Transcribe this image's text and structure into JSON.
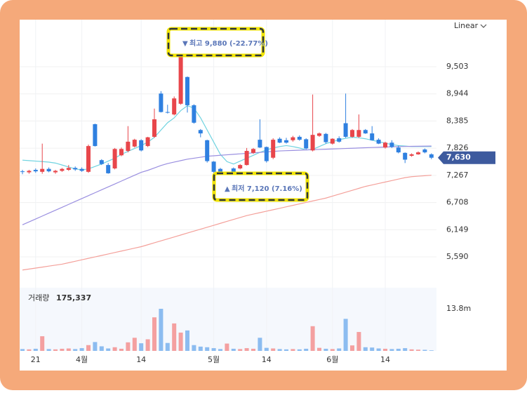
{
  "chart_data": {
    "type": "candlestick",
    "scale_label": "Linear",
    "categories": [
      null,
      null,
      "21",
      null,
      null,
      null,
      null,
      null,
      null,
      "4월",
      null,
      null,
      null,
      null,
      null,
      null,
      null,
      null,
      "14",
      null,
      null,
      null,
      null,
      null,
      null,
      null,
      null,
      null,
      null,
      "5월",
      null,
      null,
      null,
      null,
      null,
      null,
      null,
      "14",
      null,
      null,
      null,
      null,
      null,
      null,
      null,
      null,
      null,
      "6월",
      null,
      null,
      null,
      null,
      null,
      null,
      null,
      "14",
      null,
      null,
      null,
      null,
      null,
      null,
      null
    ],
    "open": [
      7350,
      7330,
      7380,
      7340,
      7400,
      7330,
      7360,
      7380,
      7420,
      7400,
      7340,
      8320,
      7580,
      7480,
      7410,
      7680,
      7770,
      7860,
      7990,
      7870,
      8060,
      8950,
      8570,
      8520,
      8740,
      9290,
      8710,
      8200,
      7990,
      7550,
      7400,
      7190,
      7410,
      7410,
      7480,
      7730,
      8000,
      7850,
      7630,
      8020,
      7990,
      7990,
      8060,
      8010,
      7780,
      8080,
      8120,
      7920,
      8030,
      8340,
      8060,
      8060,
      8200,
      8130,
      8000,
      7840,
      7940,
      7840,
      7730,
      7670,
      7700,
      7800,
      7700
    ],
    "high": [
      7380,
      7380,
      7410,
      7920,
      7430,
      7380,
      7420,
      7480,
      7450,
      7430,
      7900,
      8330,
      7600,
      7520,
      7830,
      7840,
      8280,
      8020,
      8010,
      8060,
      8640,
      9000,
      8720,
      8890,
      9880,
      9300,
      8730,
      8220,
      8000,
      7560,
      7420,
      7310,
      7430,
      7500,
      7830,
      7830,
      8420,
      7860,
      8030,
      8050,
      8040,
      8080,
      8090,
      8030,
      8930,
      8150,
      8140,
      8030,
      8070,
      8950,
      8220,
      8520,
      8220,
      8280,
      8030,
      7960,
      7990,
      7880,
      7740,
      7720,
      7760,
      7820,
      7720
    ],
    "low": [
      7290,
      7300,
      7320,
      7300,
      7330,
      7300,
      7340,
      7360,
      7360,
      7340,
      7320,
      7860,
      7480,
      7300,
      7390,
      7660,
      7740,
      7840,
      7760,
      7850,
      8040,
      8560,
      8540,
      8500,
      8720,
      8560,
      8330,
      8050,
      7530,
      7320,
      7120,
      7170,
      7330,
      7390,
      7470,
      7710,
      7830,
      7530,
      7600,
      7930,
      7920,
      7960,
      7980,
      7800,
      7760,
      8060,
      7920,
      7900,
      7940,
      8040,
      8040,
      8040,
      8120,
      7980,
      7910,
      7820,
      7830,
      7720,
      7520,
      7650,
      7690,
      7720,
      7600
    ],
    "close": [
      7340,
      7360,
      7350,
      7400,
      7350,
      7360,
      7400,
      7420,
      7390,
      7360,
      7870,
      7870,
      7500,
      7310,
      7810,
      7810,
      7960,
      8000,
      7780,
      8050,
      8420,
      8570,
      8560,
      8850,
      9860,
      8710,
      8350,
      8130,
      7560,
      7340,
      7330,
      7290,
      7340,
      7480,
      7770,
      7810,
      7840,
      7560,
      8000,
      7940,
      7940,
      8050,
      8000,
      7820,
      8100,
      8130,
      7950,
      8020,
      7960,
      8060,
      8200,
      8200,
      8130,
      7990,
      7920,
      7940,
      7850,
      7740,
      7590,
      7700,
      7740,
      7740,
      7630
    ],
    "up_color": "#e8464b",
    "down_color": "#2f80e0",
    "series": [
      {
        "color": "#6fd3e0",
        "values": [
          7580,
          7570,
          7560,
          7550,
          7540,
          7520,
          7480,
          7440,
          7400,
          7380,
          7400,
          7450,
          7500,
          7560,
          7620,
          7700,
          7760,
          7820,
          7880,
          7950,
          8050,
          8200,
          8350,
          8450,
          8600,
          8700,
          8650,
          8450,
          8200,
          7950,
          7700,
          7550,
          7500,
          7560,
          7620,
          7680,
          7740,
          7790,
          7830,
          7860,
          7880,
          7860,
          7830,
          7790,
          7800,
          7860,
          7920,
          7960,
          8000,
          8030,
          8050,
          8040,
          8020,
          7990,
          7960,
          7930,
          7900,
          7880,
          7870,
          7860,
          7860,
          7860,
          7860
        ]
      },
      {
        "color": "#9a8fe0",
        "values": [
          6250,
          6310,
          6370,
          6430,
          6490,
          6550,
          6610,
          6670,
          6730,
          6790,
          6850,
          6910,
          6970,
          7030,
          7090,
          7150,
          7210,
          7270,
          7330,
          7370,
          7420,
          7470,
          7510,
          7540,
          7570,
          7600,
          7620,
          7640,
          7660,
          7670,
          7680,
          7690,
          7700,
          7710,
          7720,
          7730,
          7740,
          7750,
          7760,
          7770,
          7775,
          7780,
          7785,
          7790,
          7795,
          7800,
          7805,
          7810,
          7815,
          7820,
          7825,
          7830,
          7835,
          7840,
          7845,
          7850,
          7855,
          7860,
          7862,
          7864,
          7866,
          7868,
          7870
        ]
      },
      {
        "color": "#f4a09a",
        "values": [
          5320,
          5340,
          5360,
          5380,
          5400,
          5420,
          5440,
          5470,
          5500,
          5530,
          5560,
          5590,
          5620,
          5650,
          5680,
          5710,
          5740,
          5770,
          5800,
          5840,
          5880,
          5920,
          5960,
          6000,
          6040,
          6080,
          6120,
          6160,
          6200,
          6240,
          6280,
          6320,
          6360,
          6400,
          6440,
          6470,
          6500,
          6530,
          6560,
          6590,
          6620,
          6650,
          6680,
          6710,
          6740,
          6770,
          6800,
          6840,
          6880,
          6920,
          6960,
          7000,
          7040,
          7070,
          7100,
          7130,
          7160,
          7190,
          7220,
          7240,
          7250,
          7260,
          7270
        ]
      }
    ],
    "ylim": [
      5100,
      10470
    ],
    "yticks": [
      {
        "value": 9503,
        "label": "9,503"
      },
      {
        "value": 8944,
        "label": "8,944"
      },
      {
        "value": 8385,
        "label": "8,385"
      },
      {
        "value": 7826,
        "label": "7,826"
      },
      {
        "value": 7267,
        "label": "7,267"
      },
      {
        "value": 6708,
        "label": "6,708"
      },
      {
        "value": 6149,
        "label": "6,149"
      },
      {
        "value": 5590,
        "label": "5,590"
      }
    ],
    "grid": true,
    "last_price": 7630,
    "last_price_label": "7,630",
    "annotations": [
      {
        "text": "최고 9,880 (-22.77%)"
      },
      {
        "text": "최저 7,120 (7.16%)"
      }
    ],
    "volume": {
      "title": "거래량",
      "last_label": "175,337",
      "up_color": "#f4a0a0",
      "down_color": "#8cbcf0",
      "values": [
        600000,
        500000,
        700000,
        4800000,
        600000,
        500000,
        700000,
        800000,
        600000,
        900000,
        1900000,
        2900000,
        1500000,
        800000,
        1200000,
        700000,
        2800000,
        4300000,
        2500000,
        3800000,
        11000000,
        13800000,
        2600000,
        9000000,
        6000000,
        6700000,
        1900000,
        1400000,
        1200000,
        900000,
        600000,
        2400000,
        700000,
        600000,
        900000,
        700000,
        4300000,
        1000000,
        800000,
        600000,
        500000,
        600000,
        500000,
        700000,
        8100000,
        1000000,
        700000,
        600000,
        800000,
        10500000,
        1800000,
        6200000,
        1200000,
        1100000,
        800000,
        700000,
        600000,
        700000,
        900000,
        500000,
        400000,
        350000,
        175337
      ],
      "ylim": [
        0,
        20700000
      ],
      "yticks": [
        {
          "value": 13800000,
          "label": "13.8m"
        }
      ]
    }
  }
}
